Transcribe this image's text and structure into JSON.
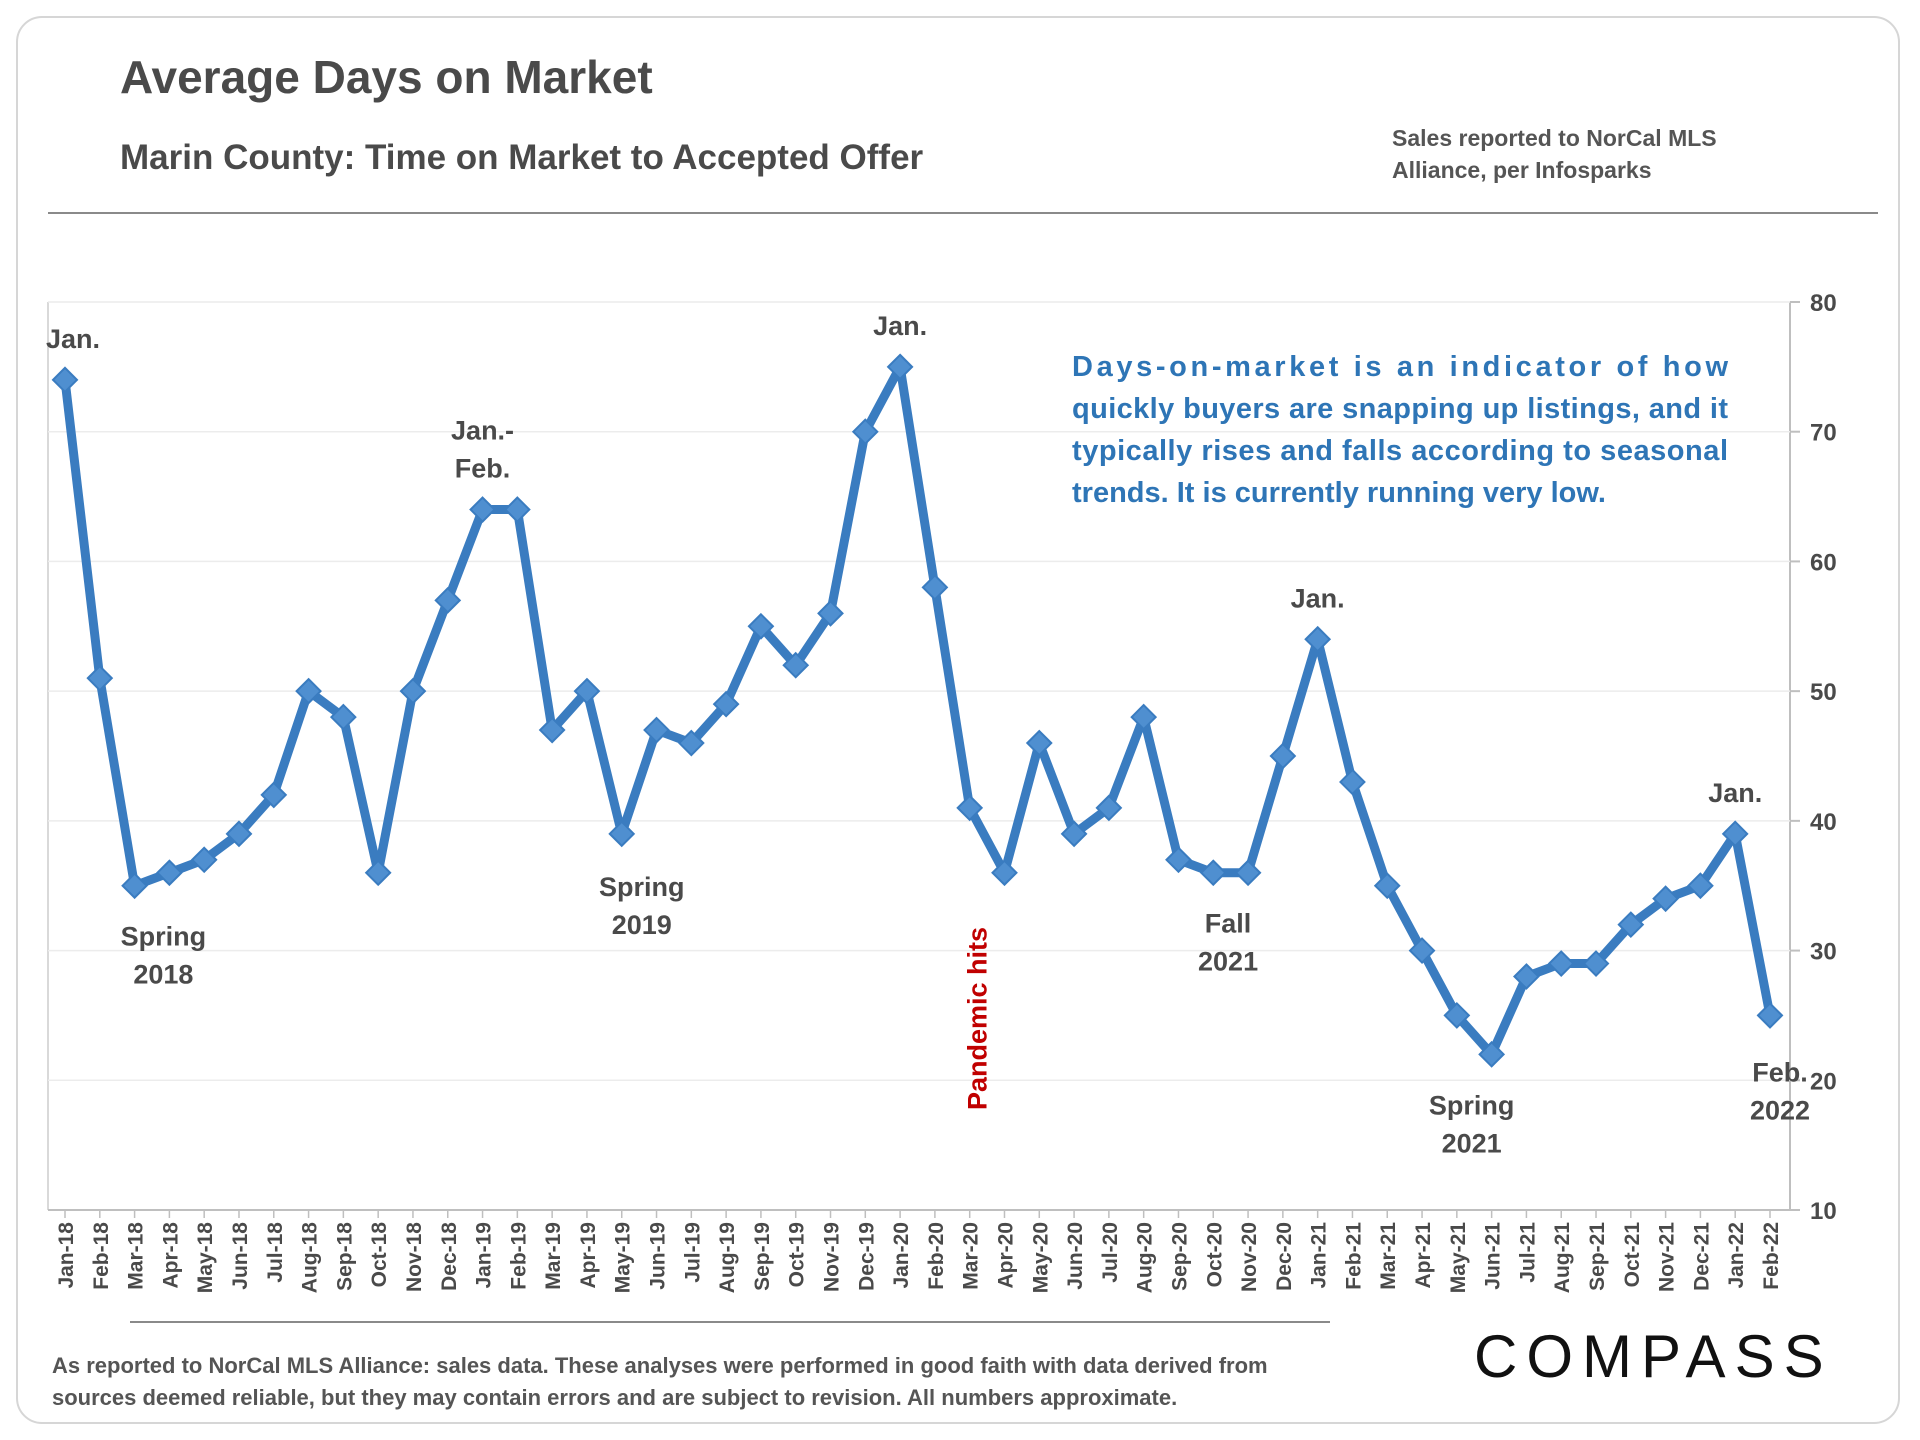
{
  "header": {
    "title": "Average Days on Market",
    "subtitle": "Marin County: Time on Market to Accepted Offer",
    "source_line1": "Sales reported to NorCal MLS",
    "source_line2": "Alliance, per Infosparks"
  },
  "footer": {
    "disclaimer_line1": "As reported to NorCal MLS Alliance: sales data. These analyses were performed in good faith with data derived from",
    "disclaimer_line2": "sources deemed reliable, but they may contain errors and are subject to revision. All numbers approximate.",
    "logo": "COMPASS"
  },
  "colors": {
    "series": "#3a7cc0",
    "note": "#2e75b6",
    "pandemic": "#c00000",
    "text": "#4a4a4a"
  },
  "chart_data": {
    "type": "line",
    "title": "Average Days on Market",
    "subtitle": "Marin County: Time on Market to Accepted Offer",
    "y_axis_position": "right",
    "ylim": [
      10,
      80
    ],
    "yticks": [
      10,
      20,
      30,
      40,
      50,
      60,
      70,
      80
    ],
    "grid": true,
    "legend": "none",
    "marker": "diamond",
    "categories": [
      "Jan-18",
      "Feb-18",
      "Mar-18",
      "Apr-18",
      "May-18",
      "Jun-18",
      "Jul-18",
      "Aug-18",
      "Sep-18",
      "Oct-18",
      "Nov-18",
      "Dec-18",
      "Jan-19",
      "Feb-19",
      "Mar-19",
      "Apr-19",
      "May-19",
      "Jun-19",
      "Jul-19",
      "Aug-19",
      "Sep-19",
      "Oct-19",
      "Nov-19",
      "Dec-19",
      "Jan-20",
      "Feb-20",
      "Mar-20",
      "Apr-20",
      "May-20",
      "Jun-20",
      "Jul-20",
      "Aug-20",
      "Sep-20",
      "Oct-20",
      "Nov-20",
      "Dec-20",
      "Jan-21",
      "Feb-21",
      "Mar-21",
      "Apr-21",
      "May-21",
      "Jun-21",
      "Jul-21",
      "Aug-21",
      "Sep-21",
      "Oct-21",
      "Nov-21",
      "Dec-21",
      "Jan-22",
      "Feb-22"
    ],
    "values": [
      74,
      51,
      35,
      36,
      37,
      39,
      42,
      50,
      48,
      36,
      50,
      57,
      64,
      64,
      47,
      50,
      39,
      47,
      46,
      49,
      55,
      52,
      56,
      70,
      75,
      58,
      41,
      36,
      46,
      39,
      41,
      48,
      37,
      36,
      36,
      45,
      54,
      43,
      35,
      30,
      25,
      22,
      28,
      29,
      29,
      32,
      34,
      35,
      39,
      25
    ],
    "annotations": [
      {
        "index": 0,
        "lines": [
          "Jan."
        ]
      },
      {
        "index": 12,
        "lines": [
          "Jan.-",
          "Feb."
        ]
      },
      {
        "index": 24,
        "lines": [
          "Jan."
        ]
      },
      {
        "index": 36,
        "lines": [
          "Jan."
        ]
      },
      {
        "index": 48,
        "lines": [
          "Jan."
        ]
      },
      {
        "index": 3,
        "lines": [
          "Spring",
          "2018"
        ]
      },
      {
        "index": 16,
        "lines": [
          "Spring",
          "2019"
        ]
      },
      {
        "index": 34,
        "lines": [
          "Fall",
          "2021"
        ]
      },
      {
        "index": 41,
        "lines": [
          "Spring",
          "2021"
        ]
      },
      {
        "index": 49,
        "lines": [
          "Feb.",
          "2022"
        ]
      }
    ],
    "pandemic_label": "Pandemic hits",
    "note_lines": [
      "Days-on-market is an indicator of how",
      "quickly buyers are snapping up listings, and it",
      "typically rises and falls according to seasonal",
      "trends. It is currently running very low."
    ]
  }
}
